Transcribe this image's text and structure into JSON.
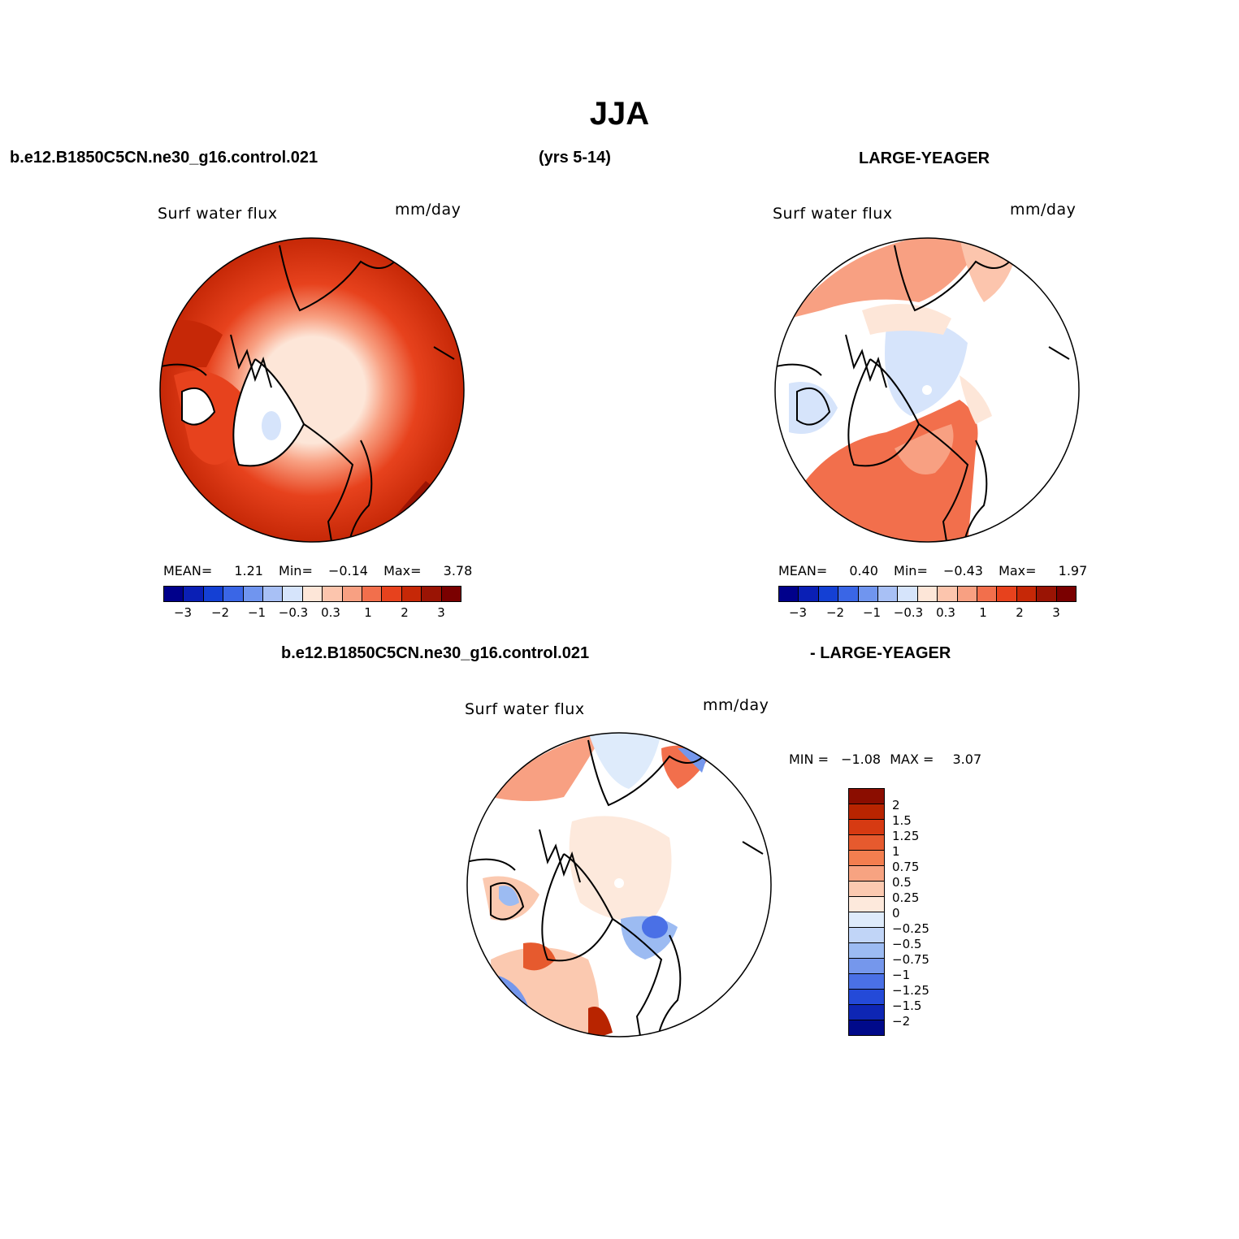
{
  "header": {
    "title": "JJA",
    "case1": "b.e12.B1850C5CN.ne30_g16.control.021",
    "years": "(yrs 5-14)",
    "case2": "LARGE-YEAGER",
    "diff_case1": "b.e12.B1850C5CN.ne30_g16.control.021",
    "diff_case2": "- LARGE-YEAGER"
  },
  "panels": [
    {
      "title": "Surf water flux",
      "units": "mm/day",
      "mean_label": "MEAN=",
      "mean": "1.21",
      "min_label": "Min=",
      "min": "−0.14",
      "max_label": "Max=",
      "max": "3.78"
    },
    {
      "title": "Surf water flux",
      "units": "mm/day",
      "mean_label": "MEAN=",
      "mean": "0.40",
      "min_label": "Min=",
      "min": "−0.43",
      "max_label": "Max=",
      "max": "1.97"
    },
    {
      "title": "Surf water flux",
      "units": "mm/day",
      "min_label": "MIN =",
      "min": "−1.08",
      "max_label": "MAX =",
      "max": "3.07"
    }
  ],
  "colorbar_abs": {
    "colors": [
      "#00008b",
      "#0a1fb5",
      "#1440d4",
      "#3a66e6",
      "#7095ef",
      "#a8c0f5",
      "#d6e4fb",
      "#fde6d8",
      "#fcc5ad",
      "#f8a082",
      "#f26f4c",
      "#e7421d",
      "#c62807",
      "#9a1404",
      "#7a0000"
    ],
    "ticks": [
      "−3",
      "−2",
      "−1",
      "−0.3",
      "0.3",
      "1",
      "2",
      "3"
    ]
  },
  "colorbar_diff": {
    "colors": [
      "#8b0d00",
      "#b82400",
      "#d63a12",
      "#e65a2e",
      "#f37e4f",
      "#f7a381",
      "#fbc9b0",
      "#fde9dc",
      "#deebfb",
      "#c1d5f7",
      "#9cbbf2",
      "#7597ec",
      "#4a70e6",
      "#244ad8",
      "#0e26b4",
      "#000a8a"
    ],
    "labels": [
      "2",
      "1.5",
      "1.25",
      "1",
      "0.75",
      "0.5",
      "0.25",
      "0",
      "−0.25",
      "−0.5",
      "−0.75",
      "−1",
      "−1.25",
      "−1.5",
      "−2"
    ]
  }
}
